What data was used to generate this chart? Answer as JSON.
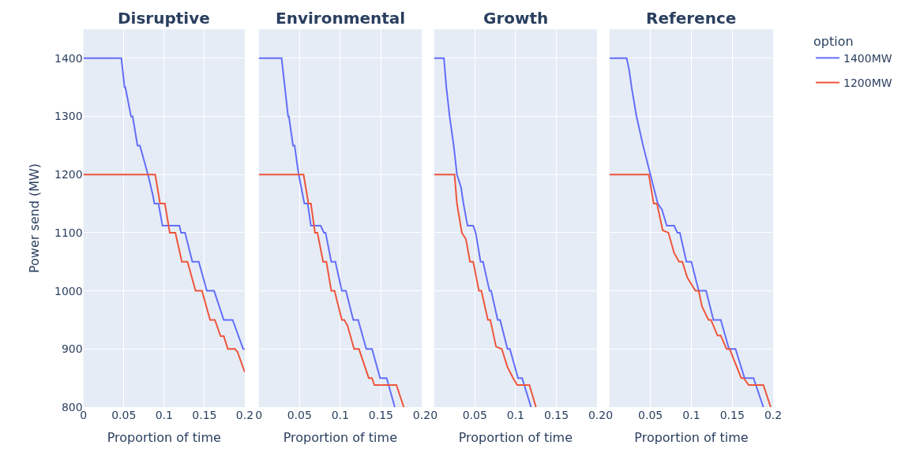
{
  "chart_data": [
    {
      "type": "line",
      "title": "Disruptive",
      "xlabel": "Proportion of time",
      "ylabel": "Power send (MW)",
      "legend_title": "option",
      "legend": "top right",
      "xlim": [
        0,
        0.2
      ],
      "xticks": [
        0,
        0.05,
        0.1,
        0.15,
        0.2
      ],
      "ylim": [
        800,
        1450
      ],
      "yticks": [
        800,
        900,
        1000,
        1100,
        1200,
        1300,
        1400
      ],
      "grid": true,
      "line_style": "solid",
      "series": [
        {
          "name": "1400MW",
          "color": "#636efa",
          "x": [
            0,
            0.047,
            0.051,
            0.052,
            0.059,
            0.061,
            0.067,
            0.07,
            0.08,
            0.086,
            0.088,
            0.093,
            0.098,
            0.119,
            0.121,
            0.126,
            0.135,
            0.143,
            0.153,
            0.162,
            0.174,
            0.185,
            0.198,
            0.2
          ],
          "values": [
            1400,
            1400,
            1350,
            1350,
            1300,
            1300,
            1250,
            1250,
            1200,
            1165,
            1150,
            1150,
            1112,
            1112,
            1100,
            1100,
            1050,
            1050,
            1000,
            1000,
            950,
            950,
            900,
            900
          ]
        },
        {
          "name": "1200MW",
          "color": "#ef553b",
          "x": [
            0,
            0.089,
            0.095,
            0.101,
            0.107,
            0.114,
            0.122,
            0.129,
            0.139,
            0.147,
            0.157,
            0.163,
            0.17,
            0.174,
            0.179,
            0.188,
            0.191,
            0.2
          ],
          "values": [
            1200,
            1200,
            1150,
            1150,
            1100,
            1100,
            1050,
            1050,
            1000,
            1000,
            950,
            950,
            922,
            922,
            900,
            900,
            895,
            860
          ]
        }
      ]
    },
    {
      "type": "line",
      "title": "Environmental",
      "xlabel": "Proportion of time",
      "xlim": [
        0,
        0.2
      ],
      "xticks": [
        0,
        0.05,
        0.1,
        0.15,
        0.2
      ],
      "ylim": [
        800,
        1450
      ],
      "yticks": [
        800,
        900,
        1000,
        1100,
        1200,
        1300,
        1400
      ],
      "grid": true,
      "line_style": "solid",
      "tick_labels": "x",
      "series": [
        {
          "color": "#636efa",
          "x": [
            0,
            0.028,
            0.032,
            0.036,
            0.037,
            0.042,
            0.044,
            0.047,
            0.049,
            0.056,
            0.06,
            0.064,
            0.076,
            0.08,
            0.082,
            0.089,
            0.094,
            0.102,
            0.107,
            0.116,
            0.122,
            0.132,
            0.139,
            0.149,
            0.157,
            0.167
          ],
          "values": [
            1400,
            1400,
            1350,
            1300,
            1300,
            1250,
            1250,
            1219,
            1200,
            1150,
            1150,
            1112,
            1112,
            1100,
            1100,
            1050,
            1050,
            1000,
            1000,
            950,
            950,
            900,
            900,
            850,
            850,
            800
          ]
        },
        {
          "color": "#ef553b",
          "x": [
            0,
            0.055,
            0.061,
            0.064,
            0.069,
            0.072,
            0.079,
            0.083,
            0.089,
            0.093,
            0.102,
            0.105,
            0.109,
            0.117,
            0.123,
            0.135,
            0.139,
            0.142,
            0.169,
            0.178
          ],
          "values": [
            1200,
            1200,
            1150,
            1150,
            1100,
            1100,
            1050,
            1050,
            1000,
            1000,
            950,
            950,
            940,
            900,
            900,
            850,
            850,
            838,
            838,
            800
          ]
        }
      ]
    },
    {
      "type": "line",
      "title": "Growth",
      "xlabel": "Proportion of time",
      "xlim": [
        0,
        0.2
      ],
      "xticks": [
        0,
        0.05,
        0.1,
        0.15,
        0.2
      ],
      "ylim": [
        800,
        1450
      ],
      "yticks": [
        800,
        900,
        1000,
        1100,
        1200,
        1300,
        1400
      ],
      "grid": true,
      "line_style": "solid",
      "tick_labels": "x",
      "series": [
        {
          "color": "#636efa",
          "x": [
            0,
            0.012,
            0.015,
            0.019,
            0.024,
            0.028,
            0.033,
            0.036,
            0.041,
            0.048,
            0.051,
            0.057,
            0.06,
            0.068,
            0.07,
            0.078,
            0.081,
            0.09,
            0.093,
            0.103,
            0.108,
            0.119
          ],
          "values": [
            1400,
            1400,
            1350,
            1300,
            1250,
            1200,
            1178,
            1150,
            1112,
            1112,
            1100,
            1050,
            1050,
            1000,
            1000,
            950,
            950,
            900,
            900,
            850,
            850,
            800
          ]
        },
        {
          "color": "#ef553b",
          "x": [
            0,
            0.025,
            0.028,
            0.034,
            0.039,
            0.044,
            0.048,
            0.055,
            0.058,
            0.066,
            0.069,
            0.076,
            0.083,
            0.09,
            0.097,
            0.102,
            0.117,
            0.125
          ],
          "values": [
            1200,
            1200,
            1150,
            1100,
            1089,
            1050,
            1050,
            1000,
            1000,
            950,
            950,
            904,
            900,
            869,
            850,
            838,
            838,
            800
          ]
        }
      ]
    },
    {
      "type": "line",
      "title": "Reference",
      "xlabel": "Proportion of time",
      "xlim": [
        0,
        0.2
      ],
      "xticks": [
        0,
        0.05,
        0.1,
        0.15,
        0.2
      ],
      "ylim": [
        800,
        1450
      ],
      "yticks": [
        800,
        900,
        1000,
        1100,
        1200,
        1300,
        1400
      ],
      "grid": true,
      "line_style": "solid",
      "tick_labels": "x",
      "series": [
        {
          "color": "#636efa",
          "x": [
            0,
            0.021,
            0.024,
            0.027,
            0.033,
            0.041,
            0.05,
            0.059,
            0.064,
            0.07,
            0.079,
            0.083,
            0.086,
            0.094,
            0.1,
            0.109,
            0.118,
            0.127,
            0.136,
            0.146,
            0.154,
            0.165,
            0.176,
            0.188
          ],
          "values": [
            1400,
            1400,
            1380,
            1350,
            1300,
            1250,
            1200,
            1150,
            1140,
            1112,
            1112,
            1100,
            1100,
            1050,
            1050,
            1000,
            1000,
            950,
            950,
            900,
            900,
            850,
            850,
            800
          ]
        },
        {
          "color": "#ef553b",
          "x": [
            0,
            0.048,
            0.054,
            0.058,
            0.065,
            0.072,
            0.079,
            0.085,
            0.089,
            0.095,
            0.105,
            0.109,
            0.113,
            0.121,
            0.124,
            0.132,
            0.136,
            0.143,
            0.147,
            0.151,
            0.161,
            0.164,
            0.17,
            0.188,
            0.197
          ],
          "values": [
            1200,
            1200,
            1150,
            1150,
            1104,
            1100,
            1065,
            1050,
            1050,
            1023,
            1000,
            1000,
            973,
            950,
            950,
            923,
            923,
            900,
            900,
            885,
            850,
            850,
            838,
            838,
            800
          ]
        }
      ]
    }
  ]
}
